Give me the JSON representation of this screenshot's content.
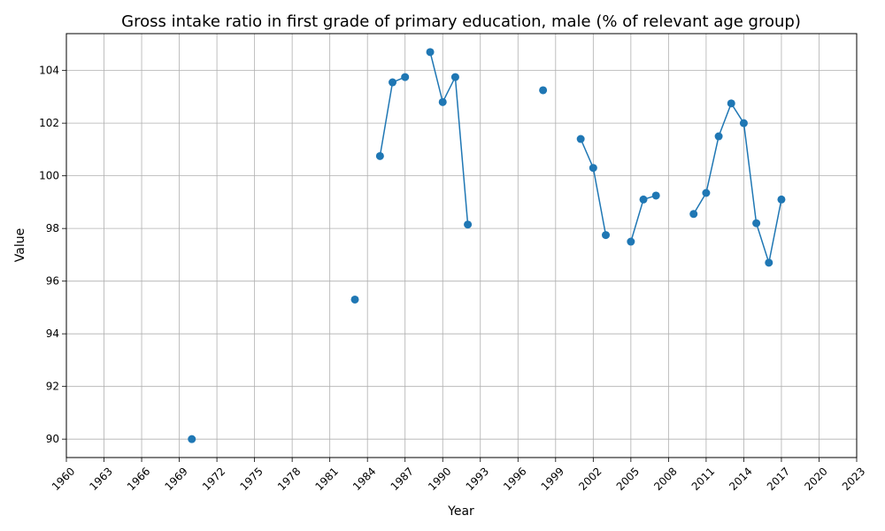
{
  "chart_data": {
    "type": "line",
    "title": "Gross intake ratio in first grade of primary education, male (% of relevant age group)",
    "xlabel": "Year",
    "ylabel": "Value",
    "xlim": [
      1960,
      2023
    ],
    "ylim": [
      89.3,
      105.4
    ],
    "x_ticks": [
      1960,
      1963,
      1966,
      1969,
      1972,
      1975,
      1978,
      1981,
      1984,
      1987,
      1990,
      1993,
      1996,
      1999,
      2002,
      2005,
      2008,
      2011,
      2014,
      2017,
      2020,
      2023
    ],
    "y_ticks": [
      90,
      92,
      94,
      96,
      98,
      100,
      102,
      104
    ],
    "grid": true,
    "color": "#1f77b4",
    "series": [
      {
        "x": [
          1970,
          1983,
          1985,
          1986,
          1987,
          1989,
          1990,
          1991,
          1992,
          1998,
          2001,
          2002,
          2003,
          2005,
          2006,
          2007,
          2010,
          2011,
          2012,
          2013,
          2014,
          2015,
          2016,
          2017
        ],
        "values": [
          90.0,
          95.3,
          100.75,
          103.55,
          103.75,
          104.7,
          102.8,
          103.75,
          98.15,
          103.25,
          101.4,
          100.3,
          97.75,
          97.5,
          99.1,
          99.25,
          98.55,
          99.35,
          101.5,
          102.75,
          102.0,
          98.2,
          96.7,
          99.1
        ]
      }
    ]
  }
}
